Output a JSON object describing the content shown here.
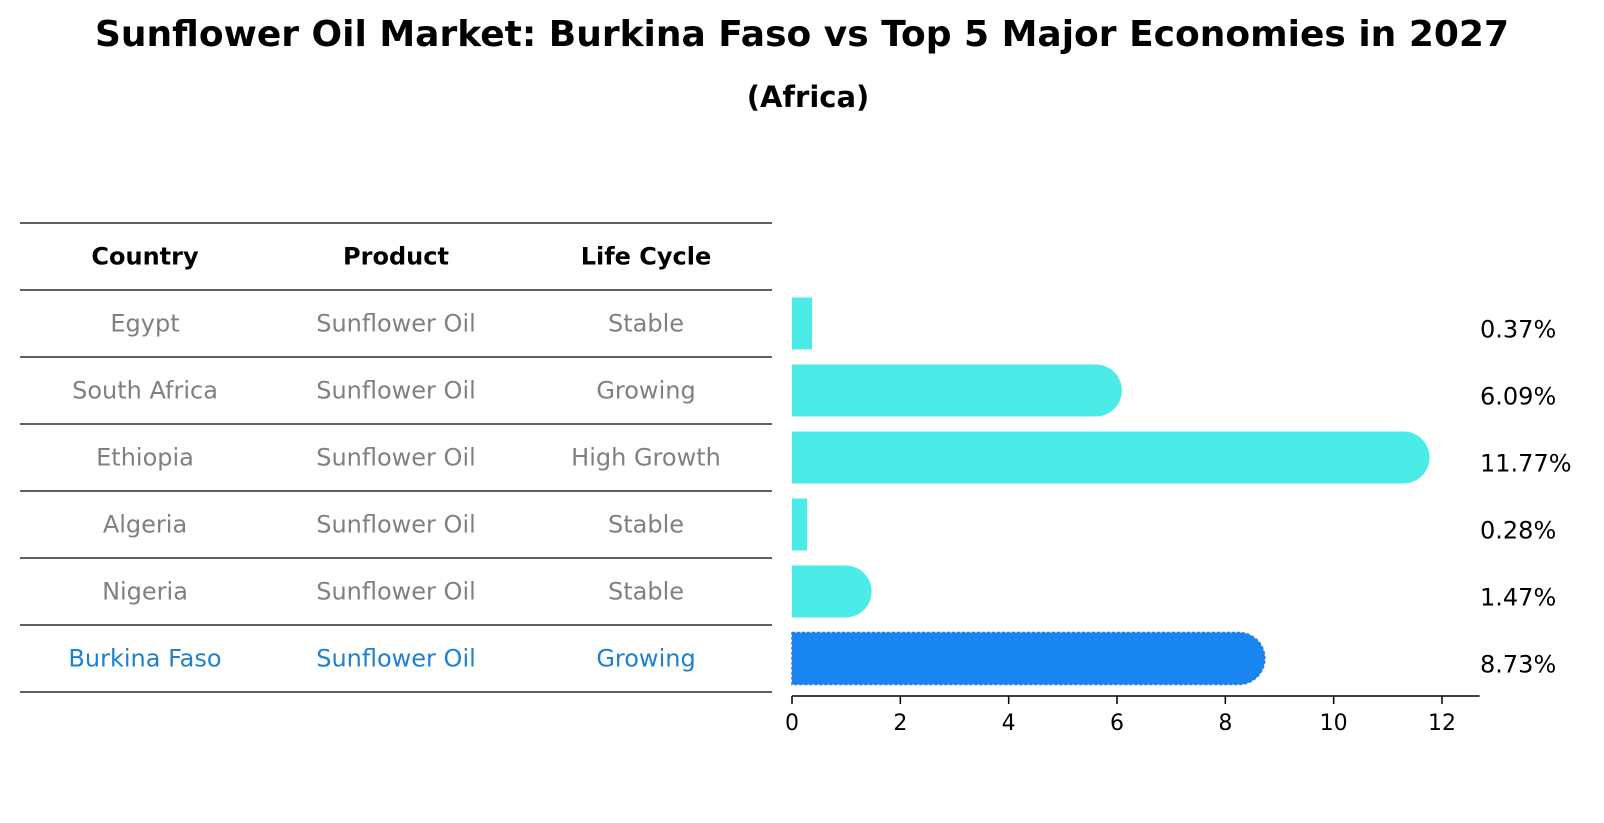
{
  "title": "Sunflower Oil Market: Burkina Faso vs Top 5 Major Economies in 2027",
  "subtitle": "(Africa)",
  "colors": {
    "bar": "#4bece8",
    "highlight": "#1985f1",
    "table_text": "#808080",
    "highlight_text": "#1f80cf",
    "line": "#000000"
  },
  "table": {
    "headers": [
      "Country",
      "Product",
      "Life Cycle"
    ],
    "rows": [
      {
        "country": "Egypt",
        "product": "Sunflower Oil",
        "life_cycle": "Stable",
        "highlight": false
      },
      {
        "country": "South Africa",
        "product": "Sunflower Oil",
        "life_cycle": "Growing",
        "highlight": false
      },
      {
        "country": "Ethiopia",
        "product": "Sunflower Oil",
        "life_cycle": "High Growth",
        "highlight": false
      },
      {
        "country": "Algeria",
        "product": "Sunflower Oil",
        "life_cycle": "Stable",
        "highlight": false
      },
      {
        "country": "Nigeria",
        "product": "Sunflower Oil",
        "life_cycle": "Stable",
        "highlight": false
      },
      {
        "country": "Burkina Faso",
        "product": "Sunflower Oil",
        "life_cycle": "Growing",
        "highlight": true
      }
    ]
  },
  "chart_data": {
    "type": "bar",
    "orientation": "horizontal",
    "categories": [
      "Egypt",
      "South Africa",
      "Ethiopia",
      "Algeria",
      "Nigeria",
      "Burkina Faso"
    ],
    "values": [
      0.37,
      6.09,
      11.77,
      0.28,
      1.47,
      8.73
    ],
    "value_labels": [
      "0.37%",
      "6.09%",
      "11.77%",
      "0.28%",
      "1.47%",
      "8.73%"
    ],
    "highlight": "Burkina Faso",
    "xlim": [
      0,
      12.4
    ],
    "xticks": [
      0,
      2,
      4,
      6,
      8,
      10,
      12
    ],
    "xlabel": "",
    "ylabel": "",
    "grid": false,
    "legend": false
  }
}
